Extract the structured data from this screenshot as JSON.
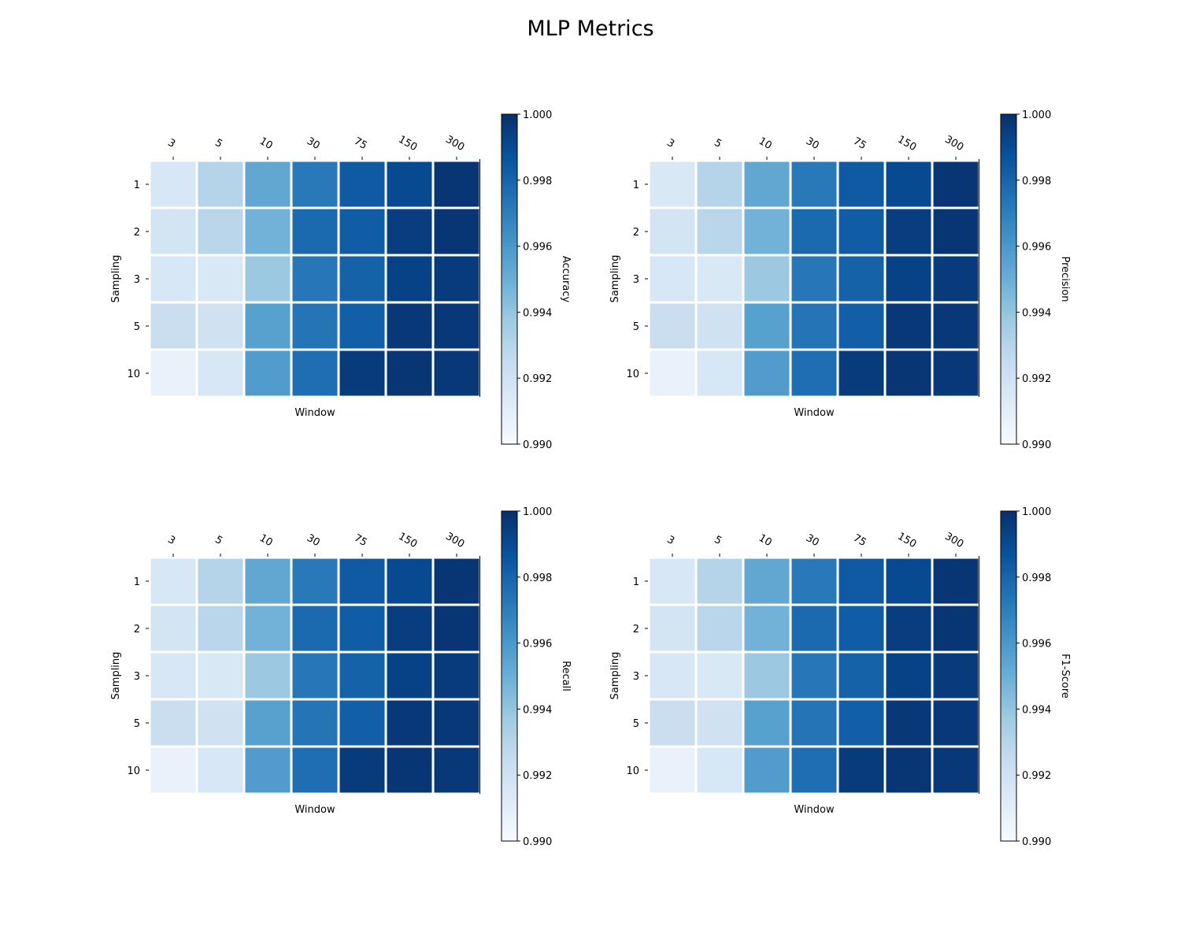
{
  "figure": {
    "title": "MLP Metrics"
  },
  "colorscale": {
    "name": "Blues",
    "min": 0.99,
    "max": 1.0,
    "stops": [
      "#f7fbff",
      "#deebf7",
      "#c6dbef",
      "#9ecae1",
      "#6baed6",
      "#4292c6",
      "#2171b5",
      "#08519c",
      "#08306b"
    ]
  },
  "chart_data": [
    {
      "type": "heatmap",
      "xlabel": "Window",
      "ylabel": "Sampling",
      "colorbar_label": "Accuracy",
      "x_categories": [
        "3",
        "5",
        "10",
        "30",
        "75",
        "150",
        "300"
      ],
      "y_categories": [
        "1",
        "2",
        "3",
        "5",
        "10"
      ],
      "colorbar_ticks": [
        "1.000",
        "0.998",
        "0.996",
        "0.994",
        "0.992",
        "0.990"
      ],
      "clim": [
        0.99,
        1.0
      ],
      "values": [
        [
          0.9916,
          0.993,
          0.9953,
          0.9972,
          0.9984,
          0.999,
          0.9998
        ],
        [
          0.9918,
          0.9929,
          0.9948,
          0.9978,
          0.9983,
          0.9995,
          0.9998
        ],
        [
          0.9916,
          0.9915,
          0.9938,
          0.9973,
          0.9981,
          0.9993,
          0.9996
        ],
        [
          0.9923,
          0.992,
          0.9956,
          0.9974,
          0.9982,
          0.9997,
          0.9997
        ],
        [
          0.9907,
          0.9916,
          0.9958,
          0.9976,
          0.9996,
          0.9998,
          0.9997
        ]
      ]
    },
    {
      "type": "heatmap",
      "xlabel": "Window",
      "ylabel": "Sampling",
      "colorbar_label": "Precision",
      "x_categories": [
        "3",
        "5",
        "10",
        "30",
        "75",
        "150",
        "300"
      ],
      "y_categories": [
        "1",
        "2",
        "3",
        "5",
        "10"
      ],
      "colorbar_ticks": [
        "1.000",
        "0.998",
        "0.996",
        "0.994",
        "0.992",
        "0.990"
      ],
      "clim": [
        0.99,
        1.0
      ],
      "values": [
        [
          0.9915,
          0.993,
          0.9953,
          0.9972,
          0.9984,
          0.999,
          0.9998
        ],
        [
          0.9918,
          0.9929,
          0.9948,
          0.9978,
          0.9983,
          0.9995,
          0.9998
        ],
        [
          0.9916,
          0.9915,
          0.9938,
          0.9973,
          0.9981,
          0.9993,
          0.9996
        ],
        [
          0.9923,
          0.992,
          0.9956,
          0.9974,
          0.9982,
          0.9997,
          0.9997
        ],
        [
          0.9907,
          0.9916,
          0.9958,
          0.9976,
          0.9996,
          0.9998,
          0.9997
        ]
      ]
    },
    {
      "type": "heatmap",
      "xlabel": "Window",
      "ylabel": "Sampling",
      "colorbar_label": "Recall",
      "x_categories": [
        "3",
        "5",
        "10",
        "30",
        "75",
        "150",
        "300"
      ],
      "y_categories": [
        "1",
        "2",
        "3",
        "5",
        "10"
      ],
      "colorbar_ticks": [
        "1.000",
        "0.998",
        "0.996",
        "0.994",
        "0.992",
        "0.990"
      ],
      "clim": [
        0.99,
        1.0
      ],
      "values": [
        [
          0.9916,
          0.993,
          0.9953,
          0.9972,
          0.9984,
          0.999,
          0.9998
        ],
        [
          0.9918,
          0.9929,
          0.9948,
          0.9978,
          0.9983,
          0.9995,
          0.9998
        ],
        [
          0.9916,
          0.9915,
          0.9938,
          0.9973,
          0.9981,
          0.9993,
          0.9996
        ],
        [
          0.9923,
          0.992,
          0.9956,
          0.9974,
          0.9982,
          0.9997,
          0.9997
        ],
        [
          0.9907,
          0.9916,
          0.9958,
          0.9976,
          0.9996,
          0.9998,
          0.9997
        ]
      ]
    },
    {
      "type": "heatmap",
      "xlabel": "Window",
      "ylabel": "Sampling",
      "colorbar_label": "F1-Score",
      "x_categories": [
        "3",
        "5",
        "10",
        "30",
        "75",
        "150",
        "300"
      ],
      "y_categories": [
        "1",
        "2",
        "3",
        "5",
        "10"
      ],
      "colorbar_ticks": [
        "1.000",
        "0.998",
        "0.996",
        "0.994",
        "0.992",
        "0.990"
      ],
      "clim": [
        0.99,
        1.0
      ],
      "values": [
        [
          0.9916,
          0.993,
          0.9953,
          0.9972,
          0.9984,
          0.999,
          0.9998
        ],
        [
          0.9918,
          0.9929,
          0.9948,
          0.9978,
          0.9983,
          0.9995,
          0.9998
        ],
        [
          0.9916,
          0.9915,
          0.9938,
          0.9973,
          0.9981,
          0.9993,
          0.9996
        ],
        [
          0.9923,
          0.992,
          0.9956,
          0.9974,
          0.9982,
          0.9997,
          0.9997
        ],
        [
          0.9907,
          0.9916,
          0.9958,
          0.9976,
          0.9996,
          0.9998,
          0.9997
        ]
      ]
    }
  ]
}
